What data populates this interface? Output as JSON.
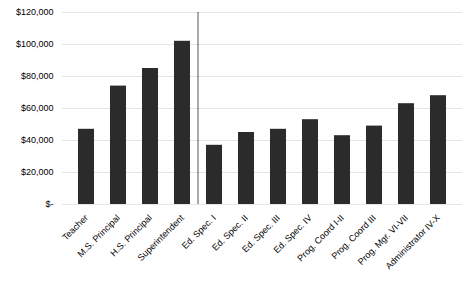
{
  "chart_data": {
    "type": "bar",
    "categories": [
      "Teacher",
      "M.S. Principal",
      "H.S. Principal",
      "Superintendent",
      "Ed. Spec. I",
      "Ed. Spec. II",
      "Ed. Spec. III",
      "Ed. Spec. IV",
      "Prog. Coord I-II",
      "Prog. Coord III",
      "Prog. Mgr. VI-VII",
      "Administrator IV-X"
    ],
    "values": [
      47000,
      74000,
      85000,
      102000,
      37000,
      45000,
      47000,
      53000,
      43000,
      49000,
      63000,
      68000
    ],
    "color": "#2b2b2b",
    "ylim": [
      0,
      120000
    ],
    "yticks": [
      {
        "value": 0,
        "label": "$-"
      },
      {
        "value": 20000,
        "label": "$20,000"
      },
      {
        "value": 40000,
        "label": "$40,000"
      },
      {
        "value": 60000,
        "label": "$60,000"
      },
      {
        "value": 80000,
        "label": "$80,000"
      },
      {
        "value": 100000,
        "label": "$100,000"
      },
      {
        "value": 120000,
        "label": "$120,000"
      }
    ],
    "grid": true,
    "divider_after": "Superintendent"
  }
}
